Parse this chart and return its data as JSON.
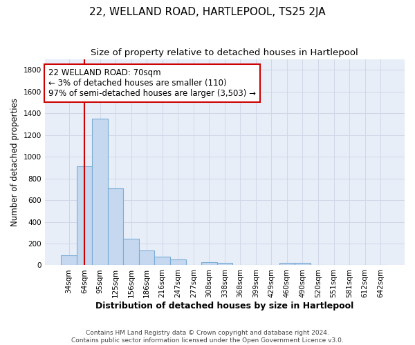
{
  "title": "22, WELLAND ROAD, HARTLEPOOL, TS25 2JA",
  "subtitle": "Size of property relative to detached houses in Hartlepool",
  "xlabel": "Distribution of detached houses by size in Hartlepool",
  "ylabel": "Number of detached properties",
  "categories": [
    "34sqm",
    "64sqm",
    "95sqm",
    "125sqm",
    "156sqm",
    "186sqm",
    "216sqm",
    "247sqm",
    "277sqm",
    "308sqm",
    "338sqm",
    "368sqm",
    "399sqm",
    "429sqm",
    "460sqm",
    "490sqm",
    "520sqm",
    "551sqm",
    "581sqm",
    "612sqm",
    "642sqm"
  ],
  "values": [
    90,
    910,
    1350,
    710,
    245,
    135,
    80,
    55,
    0,
    30,
    25,
    0,
    0,
    0,
    20,
    20,
    0,
    0,
    0,
    0,
    0
  ],
  "bar_color": "#c5d8f0",
  "bar_edge_color": "#7aadd4",
  "vline_position": 1.5,
  "vline_color": "#cc0000",
  "annotation_text": "22 WELLAND ROAD: 70sqm\n← 3% of detached houses are smaller (110)\n97% of semi-detached houses are larger (3,503) →",
  "annotation_box_facecolor": "#ffffff",
  "annotation_box_edgecolor": "#cc0000",
  "ylim": [
    0,
    1900
  ],
  "yticks": [
    0,
    200,
    400,
    600,
    800,
    1000,
    1200,
    1400,
    1600,
    1800
  ],
  "grid_color": "#d0d8e8",
  "bg_color": "#e8eef8",
  "footer": "Contains HM Land Registry data © Crown copyright and database right 2024.\nContains public sector information licensed under the Open Government Licence v3.0.",
  "title_fontsize": 11,
  "subtitle_fontsize": 9.5,
  "ylabel_fontsize": 8.5,
  "xlabel_fontsize": 9,
  "tick_fontsize": 7.5,
  "annotation_fontsize": 8.5,
  "footer_fontsize": 6.5
}
